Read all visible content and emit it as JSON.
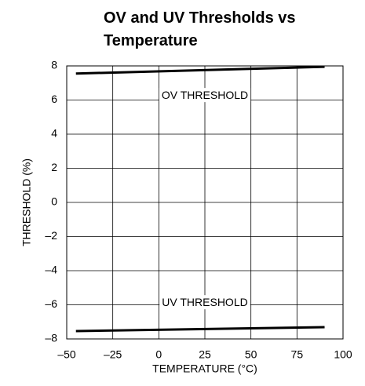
{
  "chart_data": {
    "type": "line",
    "title": [
      "OV and UV Thresholds vs",
      "Temperature"
    ],
    "x_label": "TEMPERATURE (°C)",
    "y_label": "THRESHOLD (%)",
    "x": [
      -45,
      90
    ],
    "series": [
      {
        "name": "OV THRESHOLD",
        "color": "#000000",
        "values": [
          7.55,
          7.95
        ]
      },
      {
        "name": "UV THRESHOLD",
        "color": "#000000",
        "values": [
          -7.54,
          -7.31
        ]
      }
    ],
    "xlim": [
      -50,
      100
    ],
    "xticks": [
      {
        "value": -50,
        "label": "–50"
      },
      {
        "value": -25,
        "label": "–25"
      },
      0,
      25,
      50,
      75,
      100
    ],
    "ylim": [
      -8,
      8
    ],
    "yticks": [
      {
        "value": -8,
        "label": "–8"
      },
      {
        "value": -6,
        "label": "–6"
      },
      {
        "value": -4,
        "label": "–4"
      },
      {
        "value": -2,
        "label": "–2"
      },
      0,
      2,
      4,
      6,
      8
    ],
    "grid": true
  }
}
